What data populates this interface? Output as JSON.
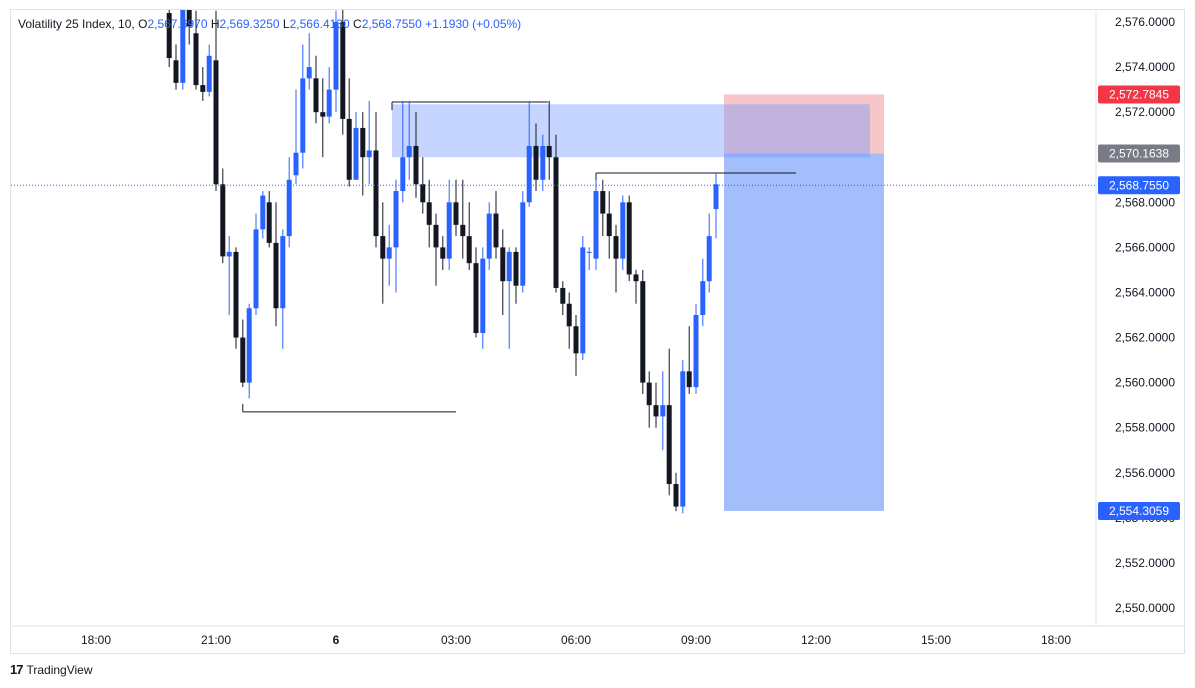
{
  "header": {
    "symbol": "Volatility 25 Index, 10,",
    "o_label": "O",
    "o_value": "2,567.6970",
    "h_label": "H",
    "h_value": "2,569.3250",
    "l_label": "L",
    "l_value": "2,566.4130",
    "c_label": "C",
    "c_value": "2,568.7550",
    "change": "+1.1930 (+0.05%)"
  },
  "footer": {
    "brand": "TradingView",
    "logo_icon": "tradingview-logo-icon"
  },
  "colors": {
    "bull": "#2962ff",
    "bear": "#131722",
    "target_zone": "#a4bdfb",
    "stop_zone": "#f7c6c9",
    "supply_zone": "#c3d5ff",
    "last_price": "#2962ff"
  },
  "chart_data": {
    "type": "candlestick",
    "ylim": [
      2549,
      2577
    ],
    "yticks": [
      "2,576.0000",
      "2,574.0000",
      "2,572.0000",
      "2,570.0000",
      "2,568.0000",
      "2,566.0000",
      "2,564.0000",
      "2,562.0000",
      "2,560.0000",
      "2,558.0000",
      "2,556.0000",
      "2,554.0000",
      "2,552.0000",
      "2,550.0000"
    ],
    "ytick_values": [
      2576,
      2574,
      2572,
      2570,
      2568,
      2566,
      2564,
      2562,
      2560,
      2558,
      2556,
      2554,
      2552,
      2550
    ],
    "xticks": [
      {
        "label": "18:00",
        "t": 18,
        "bold": false
      },
      {
        "label": "21:00",
        "t": 21,
        "bold": false
      },
      {
        "label": "6",
        "t": 24,
        "bold": true
      },
      {
        "label": "03:00",
        "t": 27,
        "bold": false
      },
      {
        "label": "06:00",
        "t": 30,
        "bold": false
      },
      {
        "label": "09:00",
        "t": 33,
        "bold": false
      },
      {
        "label": "12:00",
        "t": 36,
        "bold": false
      },
      {
        "label": "15:00",
        "t": 39,
        "bold": false
      },
      {
        "label": "18:00",
        "t": 42,
        "bold": false
      }
    ],
    "price_labels": [
      {
        "text": "2,572.7845",
        "value": 2572.7845,
        "color": "#f23645"
      },
      {
        "text": "2,570.1638",
        "value": 2570.1638,
        "color": "#787b86"
      },
      {
        "text": "2,568.7550",
        "value": 2568.755,
        "color": "#2962ff"
      },
      {
        "text": "2,554.3059",
        "value": 2554.3059,
        "color": "#2962ff"
      }
    ],
    "last_price": 2568.755,
    "position": {
      "t_start": 33.7,
      "t_end": 37.7,
      "entry": 2570.1638,
      "stop": 2572.7845,
      "target": 2554.3059
    },
    "zones": [
      {
        "name": "supply-zone",
        "t_start": 25.4,
        "t_end": 37.35,
        "top": 2572.35,
        "bottom": 2570.0
      }
    ],
    "lines": [
      {
        "name": "high-line-1",
        "t_start": 25.4,
        "t_end": 29.3,
        "value": 2572.45
      },
      {
        "name": "high-line-2",
        "t_start": 30.5,
        "t_end": 35.5,
        "value": 2569.3
      },
      {
        "name": "low-line",
        "t_start": 21.67,
        "t_end": 27.0,
        "value": 2558.7
      }
    ],
    "candles": [
      {
        "t": 19.83,
        "o": 2576.4,
        "h": 2577.0,
        "l": 2574.0,
        "c": 2574.4
      },
      {
        "t": 20.0,
        "o": 2574.3,
        "h": 2575.0,
        "l": 2573.0,
        "c": 2573.3
      },
      {
        "t": 20.17,
        "o": 2573.3,
        "h": 2577.0,
        "l": 2573.0,
        "c": 2576.8
      },
      {
        "t": 20.33,
        "o": 2576.8,
        "h": 2577.0,
        "l": 2575.0,
        "c": 2575.8
      },
      {
        "t": 20.5,
        "o": 2575.5,
        "h": 2576.5,
        "l": 2573.0,
        "c": 2573.2
      },
      {
        "t": 20.67,
        "o": 2573.2,
        "h": 2574.0,
        "l": 2572.5,
        "c": 2572.9
      },
      {
        "t": 20.83,
        "o": 2572.9,
        "h": 2575.0,
        "l": 2572.7,
        "c": 2574.5
      },
      {
        "t": 21.0,
        "o": 2574.3,
        "h": 2576.5,
        "l": 2568.5,
        "c": 2568.8
      },
      {
        "t": 21.17,
        "o": 2568.8,
        "h": 2569.5,
        "l": 2565.3,
        "c": 2565.6
      },
      {
        "t": 21.33,
        "o": 2565.6,
        "h": 2566.5,
        "l": 2563.0,
        "c": 2565.8
      },
      {
        "t": 21.5,
        "o": 2565.8,
        "h": 2566.0,
        "l": 2561.5,
        "c": 2562.0
      },
      {
        "t": 21.67,
        "o": 2562.0,
        "h": 2562.8,
        "l": 2559.8,
        "c": 2560.0
      },
      {
        "t": 21.83,
        "o": 2560.0,
        "h": 2563.5,
        "l": 2559.3,
        "c": 2563.3
      },
      {
        "t": 22.0,
        "o": 2563.3,
        "h": 2567.5,
        "l": 2563.0,
        "c": 2566.8
      },
      {
        "t": 22.17,
        "o": 2566.8,
        "h": 2568.5,
        "l": 2566.4,
        "c": 2568.3
      },
      {
        "t": 22.33,
        "o": 2568.0,
        "h": 2568.5,
        "l": 2566.0,
        "c": 2566.2
      },
      {
        "t": 22.5,
        "o": 2566.2,
        "h": 2568.0,
        "l": 2562.5,
        "c": 2563.3
      },
      {
        "t": 22.67,
        "o": 2563.3,
        "h": 2566.8,
        "l": 2561.5,
        "c": 2566.5
      },
      {
        "t": 22.83,
        "o": 2566.5,
        "h": 2570.0,
        "l": 2566.0,
        "c": 2569.0
      },
      {
        "t": 23.0,
        "o": 2569.2,
        "h": 2573.0,
        "l": 2568.8,
        "c": 2570.2
      },
      {
        "t": 23.17,
        "o": 2570.2,
        "h": 2575.0,
        "l": 2569.5,
        "c": 2573.5
      },
      {
        "t": 23.33,
        "o": 2573.5,
        "h": 2575.5,
        "l": 2573.0,
        "c": 2574.0
      },
      {
        "t": 23.5,
        "o": 2573.5,
        "h": 2574.5,
        "l": 2571.5,
        "c": 2572.0
      },
      {
        "t": 23.67,
        "o": 2572.0,
        "h": 2573.5,
        "l": 2570.0,
        "c": 2571.8
      },
      {
        "t": 23.83,
        "o": 2571.8,
        "h": 2574.0,
        "l": 2571.5,
        "c": 2573.0
      },
      {
        "t": 24.0,
        "o": 2573.0,
        "h": 2576.5,
        "l": 2572.0,
        "c": 2576.0
      },
      {
        "t": 24.17,
        "o": 2576.0,
        "h": 2577.0,
        "l": 2571.0,
        "c": 2571.7
      },
      {
        "t": 24.33,
        "o": 2571.7,
        "h": 2573.5,
        "l": 2568.7,
        "c": 2569.0
      },
      {
        "t": 24.5,
        "o": 2569.0,
        "h": 2572.0,
        "l": 2569.0,
        "c": 2571.3
      },
      {
        "t": 24.67,
        "o": 2571.3,
        "h": 2572.0,
        "l": 2568.3,
        "c": 2570.0
      },
      {
        "t": 24.83,
        "o": 2570.0,
        "h": 2572.5,
        "l": 2568.8,
        "c": 2570.3
      },
      {
        "t": 25.0,
        "o": 2570.3,
        "h": 2572.0,
        "l": 2566.0,
        "c": 2566.5
      },
      {
        "t": 25.17,
        "o": 2566.5,
        "h": 2568.0,
        "l": 2563.5,
        "c": 2565.5
      },
      {
        "t": 25.33,
        "o": 2565.5,
        "h": 2567.0,
        "l": 2564.3,
        "c": 2566.0
      },
      {
        "t": 25.5,
        "o": 2566.0,
        "h": 2569.0,
        "l": 2564.0,
        "c": 2568.5
      },
      {
        "t": 25.67,
        "o": 2568.5,
        "h": 2572.5,
        "l": 2568.0,
        "c": 2570.0
      },
      {
        "t": 25.83,
        "o": 2570.0,
        "h": 2572.5,
        "l": 2569.0,
        "c": 2570.5
      },
      {
        "t": 26.0,
        "o": 2570.5,
        "h": 2572.0,
        "l": 2568.2,
        "c": 2568.8
      },
      {
        "t": 26.17,
        "o": 2568.8,
        "h": 2570.0,
        "l": 2567.5,
        "c": 2568.0
      },
      {
        "t": 26.33,
        "o": 2568.0,
        "h": 2569.0,
        "l": 2566.0,
        "c": 2567.0
      },
      {
        "t": 26.5,
        "o": 2567.0,
        "h": 2567.5,
        "l": 2564.3,
        "c": 2566.0
      },
      {
        "t": 26.67,
        "o": 2566.0,
        "h": 2566.5,
        "l": 2565.0,
        "c": 2565.5
      },
      {
        "t": 26.83,
        "o": 2565.5,
        "h": 2569.0,
        "l": 2565.0,
        "c": 2568.0
      },
      {
        "t": 27.0,
        "o": 2568.0,
        "h": 2569.0,
        "l": 2566.5,
        "c": 2567.0
      },
      {
        "t": 27.17,
        "o": 2567.0,
        "h": 2569.0,
        "l": 2565.5,
        "c": 2566.5
      },
      {
        "t": 27.33,
        "o": 2566.5,
        "h": 2568.0,
        "l": 2565.0,
        "c": 2565.3
      },
      {
        "t": 27.5,
        "o": 2565.3,
        "h": 2566.0,
        "l": 2562.0,
        "c": 2562.2
      },
      {
        "t": 27.67,
        "o": 2562.2,
        "h": 2566.0,
        "l": 2561.5,
        "c": 2565.5
      },
      {
        "t": 27.83,
        "o": 2565.5,
        "h": 2568.0,
        "l": 2565.0,
        "c": 2567.5
      },
      {
        "t": 28.0,
        "o": 2567.5,
        "h": 2568.5,
        "l": 2565.5,
        "c": 2566.0
      },
      {
        "t": 28.17,
        "o": 2566.0,
        "h": 2566.8,
        "l": 2563.0,
        "c": 2564.5
      },
      {
        "t": 28.33,
        "o": 2564.5,
        "h": 2566.0,
        "l": 2561.5,
        "c": 2565.8
      },
      {
        "t": 28.5,
        "o": 2565.8,
        "h": 2566.0,
        "l": 2563.5,
        "c": 2564.3
      },
      {
        "t": 28.67,
        "o": 2564.3,
        "h": 2568.5,
        "l": 2564.0,
        "c": 2568.0
      },
      {
        "t": 28.83,
        "o": 2568.0,
        "h": 2572.5,
        "l": 2567.8,
        "c": 2570.5
      },
      {
        "t": 29.0,
        "o": 2570.5,
        "h": 2571.5,
        "l": 2568.5,
        "c": 2569.0
      },
      {
        "t": 29.17,
        "o": 2569.0,
        "h": 2571.0,
        "l": 2568.5,
        "c": 2570.5
      },
      {
        "t": 29.33,
        "o": 2570.5,
        "h": 2572.5,
        "l": 2569.0,
        "c": 2570.0
      },
      {
        "t": 29.5,
        "o": 2570.0,
        "h": 2571.0,
        "l": 2564.0,
        "c": 2564.2
      },
      {
        "t": 29.67,
        "o": 2564.2,
        "h": 2564.5,
        "l": 2563.0,
        "c": 2563.5
      },
      {
        "t": 29.83,
        "o": 2563.5,
        "h": 2564.0,
        "l": 2561.5,
        "c": 2562.5
      },
      {
        "t": 30.0,
        "o": 2562.5,
        "h": 2563.0,
        "l": 2560.3,
        "c": 2561.3
      },
      {
        "t": 30.17,
        "o": 2561.3,
        "h": 2566.5,
        "l": 2561.0,
        "c": 2566.0
      },
      {
        "t": 30.33,
        "o": 2565.8,
        "h": 2566.0,
        "l": 2565.0,
        "c": 2565.8
      },
      {
        "t": 30.5,
        "o": 2565.5,
        "h": 2569.0,
        "l": 2565.0,
        "c": 2568.5
      },
      {
        "t": 30.67,
        "o": 2568.5,
        "h": 2569.0,
        "l": 2566.5,
        "c": 2567.5
      },
      {
        "t": 30.83,
        "o": 2567.5,
        "h": 2568.5,
        "l": 2565.5,
        "c": 2566.5
      },
      {
        "t": 31.0,
        "o": 2566.5,
        "h": 2567.0,
        "l": 2564.0,
        "c": 2565.5
      },
      {
        "t": 31.17,
        "o": 2565.5,
        "h": 2568.3,
        "l": 2565.0,
        "c": 2568.0
      },
      {
        "t": 31.33,
        "o": 2568.0,
        "h": 2568.3,
        "l": 2564.5,
        "c": 2564.8
      },
      {
        "t": 31.5,
        "o": 2564.8,
        "h": 2565.0,
        "l": 2563.5,
        "c": 2564.5
      },
      {
        "t": 31.67,
        "o": 2564.5,
        "h": 2565.0,
        "l": 2559.5,
        "c": 2560.0
      },
      {
        "t": 31.83,
        "o": 2560.0,
        "h": 2560.5,
        "l": 2558.0,
        "c": 2559.0
      },
      {
        "t": 32.0,
        "o": 2559.0,
        "h": 2560.0,
        "l": 2558.0,
        "c": 2558.5
      },
      {
        "t": 32.17,
        "o": 2558.5,
        "h": 2560.5,
        "l": 2557.0,
        "c": 2559.0
      },
      {
        "t": 32.33,
        "o": 2559.0,
        "h": 2561.5,
        "l": 2555.0,
        "c": 2555.5
      },
      {
        "t": 32.5,
        "o": 2555.5,
        "h": 2556.0,
        "l": 2554.3,
        "c": 2554.5
      },
      {
        "t": 32.67,
        "o": 2554.5,
        "h": 2561.0,
        "l": 2554.2,
        "c": 2560.5
      },
      {
        "t": 32.83,
        "o": 2560.5,
        "h": 2562.5,
        "l": 2559.5,
        "c": 2559.8
      },
      {
        "t": 33.0,
        "o": 2559.8,
        "h": 2563.5,
        "l": 2559.5,
        "c": 2563.0
      },
      {
        "t": 33.17,
        "o": 2563.0,
        "h": 2565.5,
        "l": 2562.5,
        "c": 2564.5
      },
      {
        "t": 33.33,
        "o": 2564.5,
        "h": 2567.5,
        "l": 2564.0,
        "c": 2566.5
      },
      {
        "t": 33.5,
        "o": 2567.7,
        "h": 2569.3,
        "l": 2566.4,
        "c": 2568.8
      }
    ]
  }
}
